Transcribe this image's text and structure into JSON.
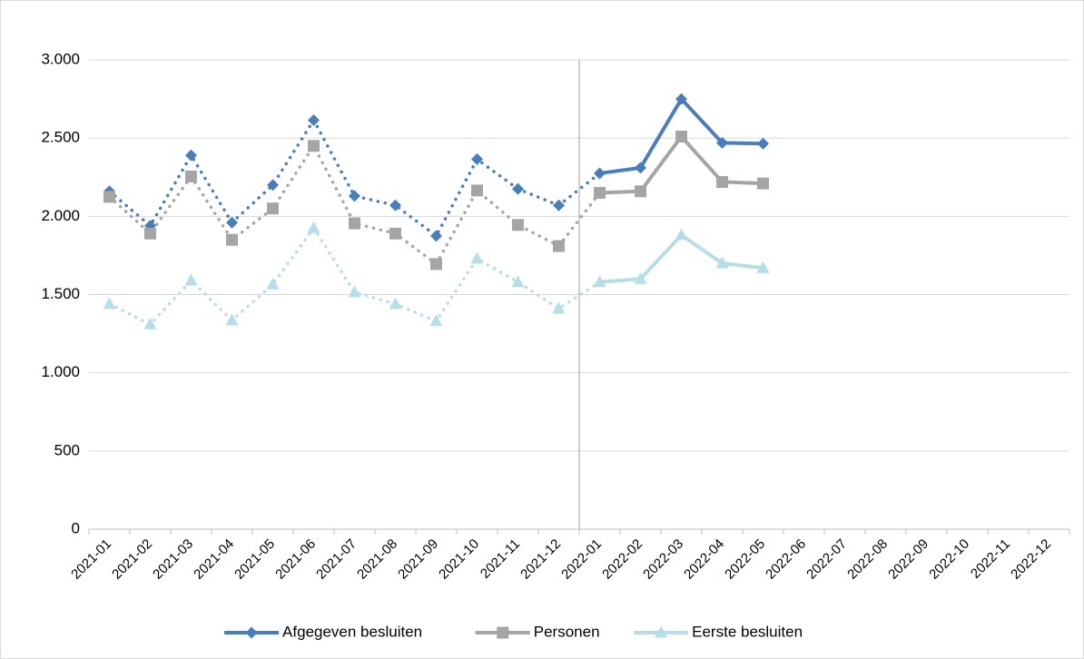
{
  "chart_data": {
    "type": "line",
    "categories": [
      "2021-01",
      "2021-02",
      "2021-03",
      "2021-04",
      "2021-05",
      "2021-06",
      "2021-07",
      "2021-08",
      "2021-09",
      "2021-10",
      "2021-11",
      "2021-12",
      "2022-01",
      "2022-02",
      "2022-03",
      "2022-04",
      "2022-05",
      "2022-06",
      "2022-07",
      "2022-08",
      "2022-09",
      "2022-10",
      "2022-11",
      "2022-12"
    ],
    "series": [
      {
        "name": "Afgegeven besluiten",
        "color": "#4a7ebb",
        "marker": "diamond",
        "values": [
          2160,
          1940,
          2390,
          1960,
          2200,
          2615,
          2130,
          2070,
          1875,
          2365,
          2175,
          2070,
          2275,
          2310,
          2750,
          2470,
          2465,
          null,
          null,
          null,
          null,
          null,
          null,
          null
        ]
      },
      {
        "name": "Personen",
        "color": "#a5a5a5",
        "marker": "square",
        "values": [
          2125,
          1890,
          2255,
          1850,
          2050,
          2450,
          1955,
          1890,
          1695,
          2165,
          1945,
          1810,
          2150,
          2160,
          2510,
          2220,
          2210,
          null,
          null,
          null,
          null,
          null,
          null,
          null
        ]
      },
      {
        "name": "Eerste besluiten",
        "color": "#b7dde8",
        "marker": "triangle",
        "values": [
          1440,
          1310,
          1590,
          1335,
          1565,
          1925,
          1515,
          1440,
          1330,
          1730,
          1580,
          1410,
          1580,
          1600,
          1880,
          1700,
          1670,
          null,
          null,
          null,
          null,
          null,
          null,
          null
        ]
      }
    ],
    "dotted_before": "2022-01",
    "ylim": [
      0,
      3000
    ],
    "yticks": [
      0,
      500,
      {
        "value": 1000,
        "label": "1.000"
      },
      {
        "value": 1500,
        "label": "1.500"
      },
      {
        "value": 2000,
        "label": "2.000"
      },
      {
        "value": 2500,
        "label": "2.500"
      },
      {
        "value": 3000,
        "label": "3.000"
      }
    ],
    "grid": true,
    "legend": "bottom"
  }
}
